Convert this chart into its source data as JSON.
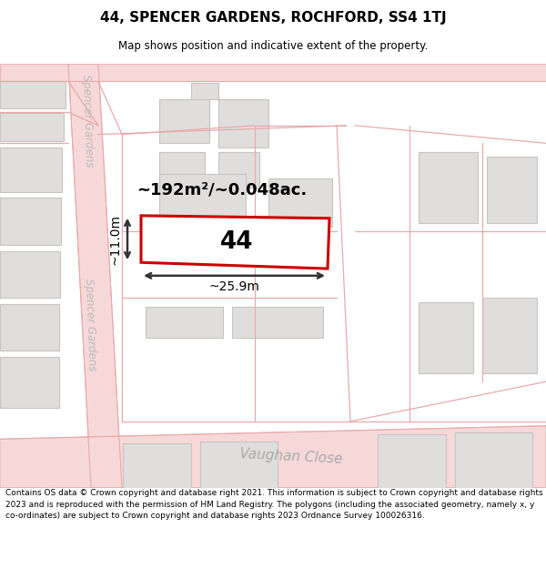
{
  "title": "44, SPENCER GARDENS, ROCHFORD, SS4 1TJ",
  "subtitle": "Map shows position and indicative extent of the property.",
  "footer": "Contains OS data © Crown copyright and database right 2021. This information is subject to Crown copyright and database rights 2023 and is reproduced with the permission of HM Land Registry. The polygons (including the associated geometry, namely x, y co-ordinates) are subject to Crown copyright and database rights 2023 Ordnance Survey 100026316.",
  "area_label": "~192m²/~0.048ac.",
  "house_number": "44",
  "width_label": "~25.9m",
  "height_label": "~11.0m",
  "map_bg": "#f8f7f5",
  "road_fill": "#f7d8d8",
  "road_line": "#e8aaaa",
  "building_fill": "#e0dedd",
  "building_edge": "#c8c4c0",
  "prop_fill": "#ffffff",
  "prop_edge": "#cc0000",
  "street_color": "#bbbbbb",
  "dim_color": "#333333",
  "vaughan_color": "#aaaaaa"
}
